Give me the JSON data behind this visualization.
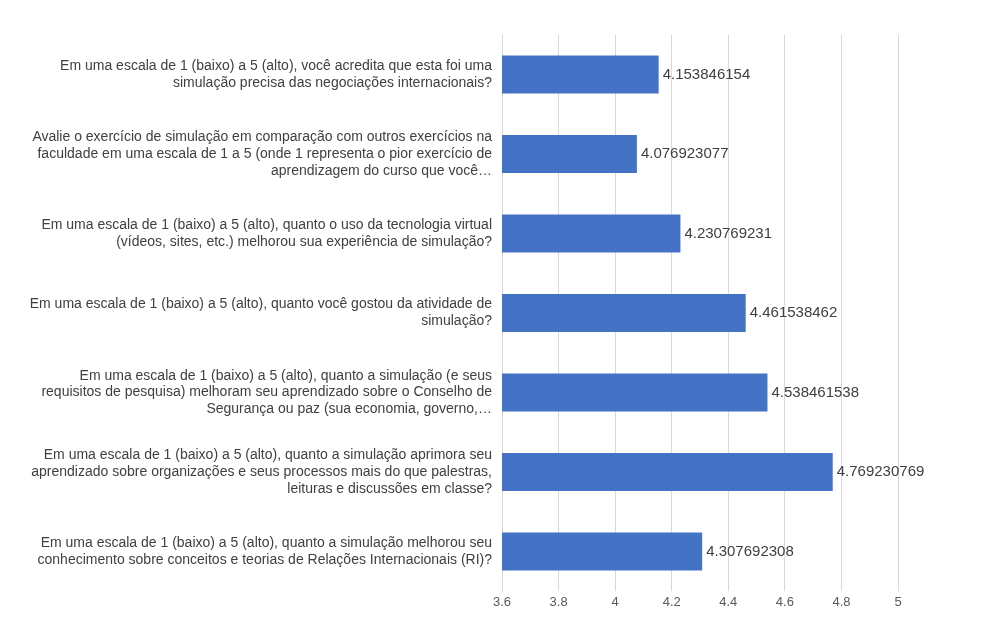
{
  "chart_data": {
    "type": "bar",
    "orientation": "horizontal",
    "categories": [
      "Em uma escala de 1 (baixo) a 5 (alto), você acredita que esta foi uma simulação precisa das negociações internacionais?",
      "Avalie o exercício de simulação em comparação com outros exercícios na faculdade em uma escala de 1 a 5 (onde 1 representa o pior exercício de aprendizagem do curso que você…",
      "Em uma escala de 1 (baixo) a 5 (alto), quanto o uso da tecnologia virtual (vídeos, sites, etc.) melhorou sua experiência de simulação?",
      "Em uma escala de 1 (baixo) a 5 (alto), quanto você gostou da atividade de simulação?",
      "Em uma escala de 1 (baixo) a 5 (alto), quanto a simulação (e seus requisitos de pesquisa) melhoram seu aprendizado sobre o Conselho de Segurança ou paz (sua economia, governo,…",
      "Em uma escala de 1 (baixo) a 5 (alto), quanto a simulação aprimora seu aprendizado sobre organizações e seus processos mais do que palestras, leituras e discussões em classe?",
      "Em uma escala de 1 (baixo) a 5 (alto), quanto a simulação melhorou seu conhecimento sobre conceitos e teorias de Relações Internacionais (RI)?"
    ],
    "values": [
      4.153846154,
      4.076923077,
      4.230769231,
      4.461538462,
      4.538461538,
      4.769230769,
      4.307692308
    ],
    "color": "#4472c4",
    "xlim": [
      3.6,
      5
    ],
    "xticks": [
      3.6,
      3.8,
      4,
      4.2,
      4.4,
      4.6,
      4.8,
      5
    ],
    "grid": "x",
    "data_labels": true
  }
}
